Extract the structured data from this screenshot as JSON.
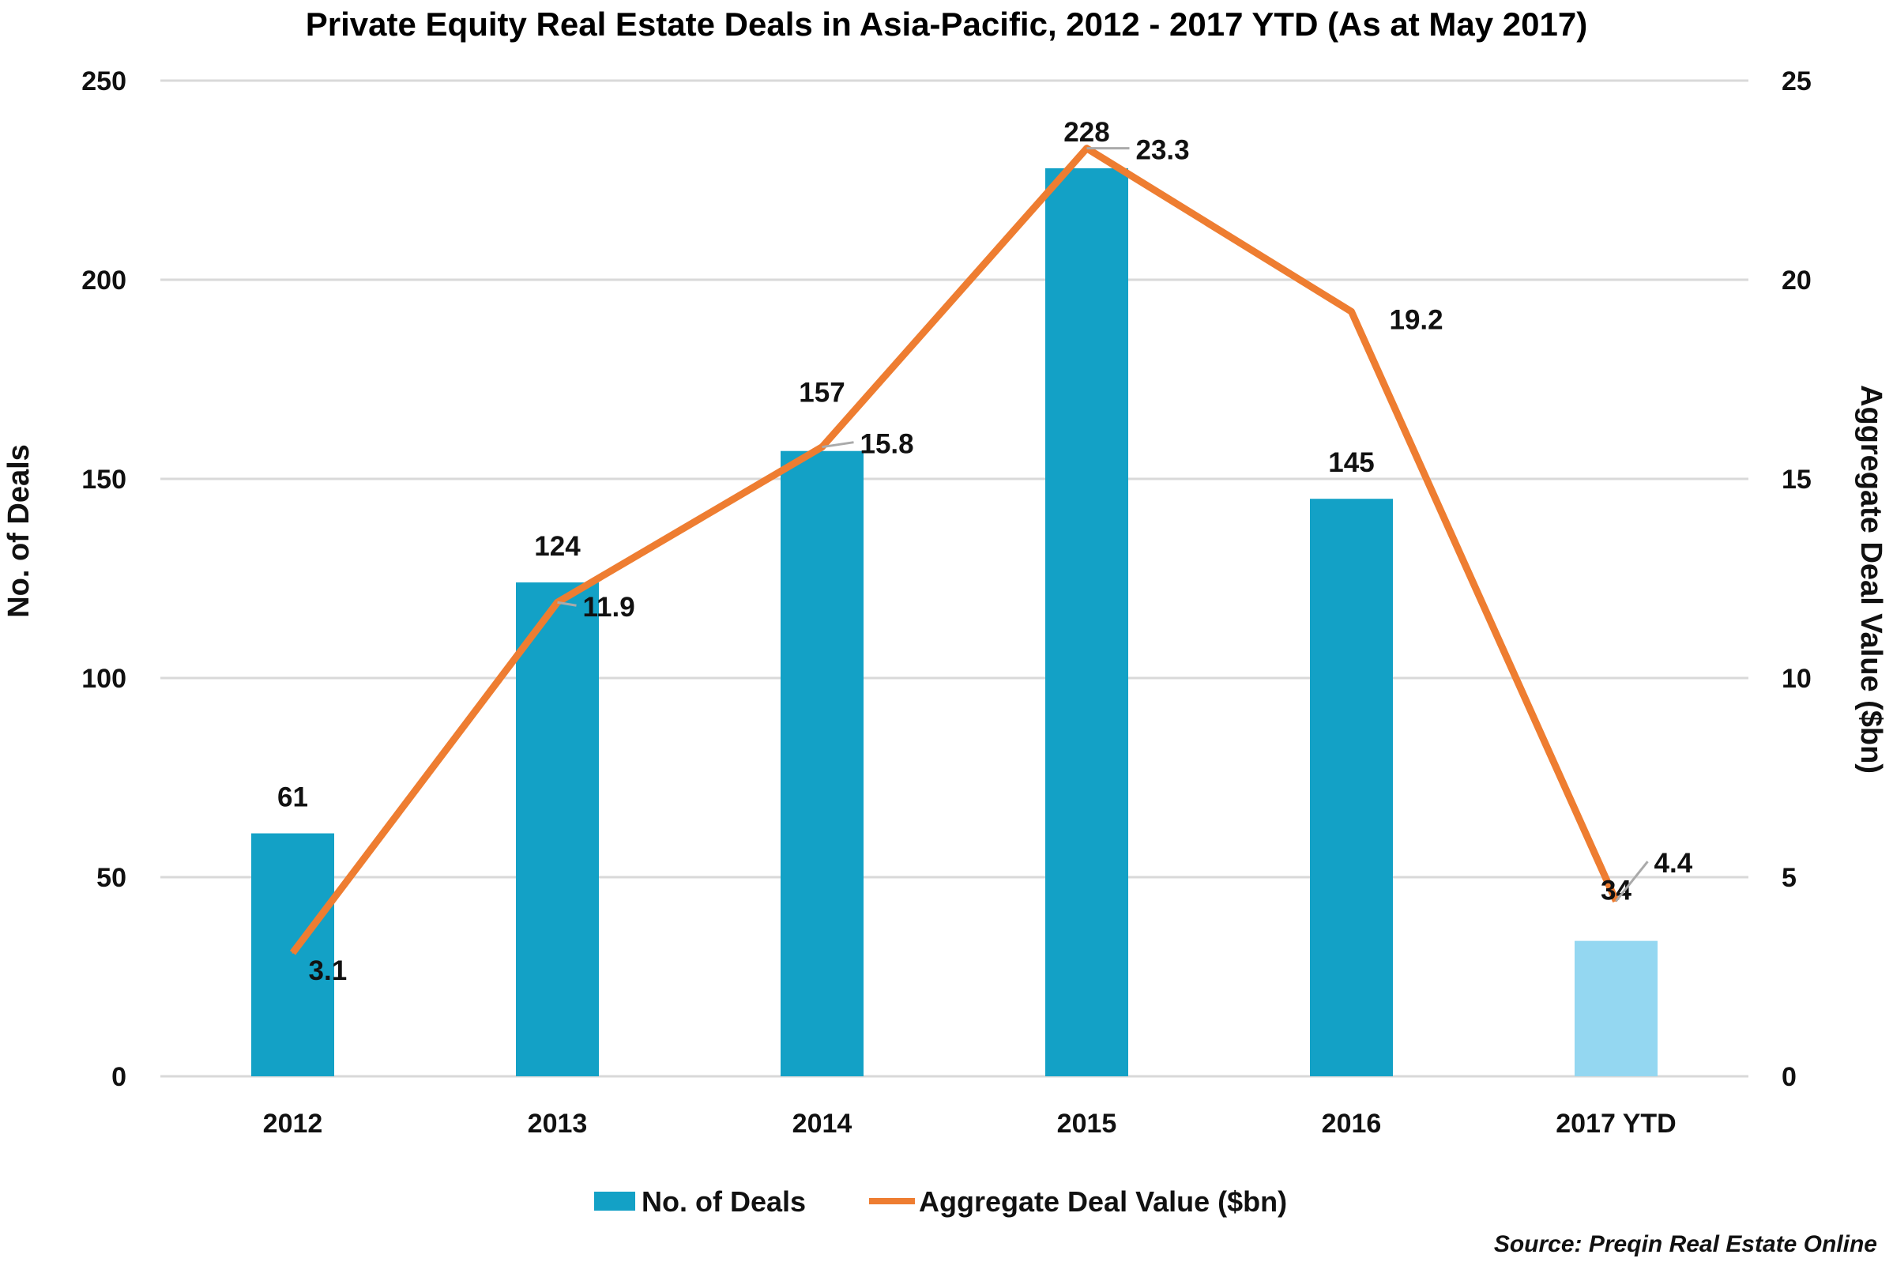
{
  "chart_data": {
    "type": "bar+line",
    "title": "Private Equity Real Estate Deals in Asia-Pacific, 2012 - 2017 YTD (As at May 2017)",
    "categories": [
      "2012",
      "2013",
      "2014",
      "2015",
      "2016",
      "2017 YTD"
    ],
    "series": [
      {
        "name": "No. of Deals",
        "type": "bar",
        "axis": "left",
        "values": [
          61,
          124,
          157,
          228,
          145,
          34
        ],
        "color": "#13a1c6",
        "highlight_last_color": "#94d7f1"
      },
      {
        "name": "Aggregate Deal Value ($bn)",
        "type": "line",
        "axis": "right",
        "values": [
          3.1,
          11.9,
          15.8,
          23.3,
          19.2,
          4.4
        ],
        "color": "#ee7d31"
      }
    ],
    "ylabel": "No. of Deals",
    "y2label": "Aggregate Deal Value ($bn)",
    "ylim": [
      0,
      250
    ],
    "y2lim": [
      0,
      25
    ],
    "yticks": [
      0,
      50,
      100,
      150,
      200,
      250
    ],
    "y2ticks": [
      0,
      5,
      10,
      15,
      20,
      25
    ],
    "grid": true,
    "gridline_color": "#d9d9d9",
    "legend_position": "bottom",
    "source": "Source: Preqin Real Estate Online"
  }
}
